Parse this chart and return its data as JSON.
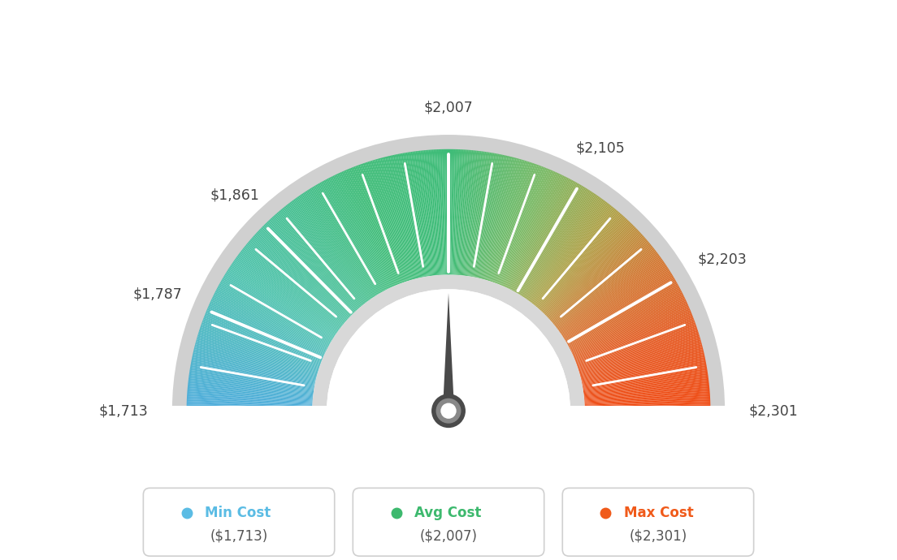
{
  "min_val": 1713,
  "max_val": 2301,
  "avg_val": 2007,
  "tick_labels": [
    "$1,713",
    "$1,787",
    "$1,861",
    "$2,007",
    "$2,105",
    "$2,203",
    "$2,301"
  ],
  "tick_values": [
    1713,
    1787,
    1861,
    2007,
    2105,
    2203,
    2301
  ],
  "legend": [
    {
      "label": "Min Cost",
      "sub": "($1,713)",
      "color": "#5bbce4"
    },
    {
      "label": "Avg Cost",
      "sub": "($2,007)",
      "color": "#3db96e"
    },
    {
      "label": "Max Cost",
      "sub": "($2,301)",
      "color": "#f05a1a"
    }
  ],
  "color_stops": [
    [
      0.0,
      [
        78,
        172,
        220
      ]
    ],
    [
      0.18,
      [
        80,
        195,
        175
      ]
    ],
    [
      0.38,
      [
        62,
        188,
        120
      ]
    ],
    [
      0.5,
      [
        62,
        188,
        120
      ]
    ],
    [
      0.62,
      [
        120,
        185,
        100
      ]
    ],
    [
      0.72,
      [
        175,
        160,
        70
      ]
    ],
    [
      0.8,
      [
        210,
        120,
        50
      ]
    ],
    [
      0.9,
      [
        230,
        90,
        35
      ]
    ],
    [
      1.0,
      [
        240,
        75,
        20
      ]
    ]
  ],
  "bg_color": "#ffffff",
  "needle_color": "#4a4a4a",
  "outer_border_color": "#d4d4d4",
  "inner_border_color": "#d4d4d4"
}
